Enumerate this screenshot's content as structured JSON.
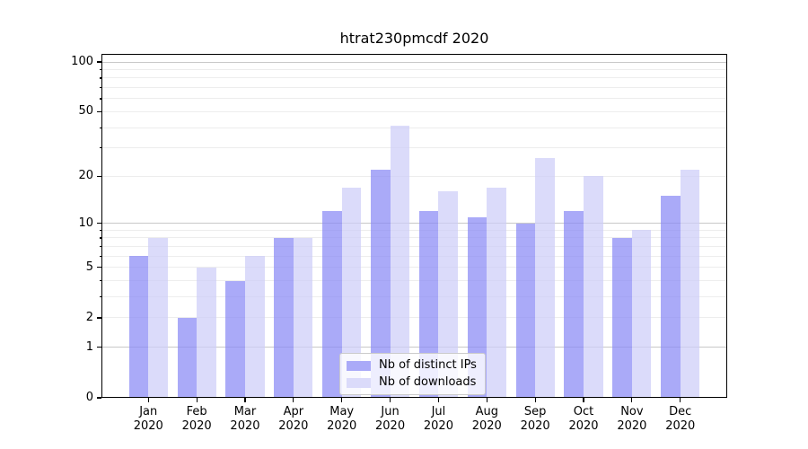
{
  "figure": {
    "background": "#ffffff"
  },
  "chart_data": {
    "type": "bar",
    "title": "htrat230pmcdf 2020",
    "categories": [
      "Jan",
      "Feb",
      "Mar",
      "Apr",
      "May",
      "Jun",
      "Jul",
      "Aug",
      "Sep",
      "Oct",
      "Nov",
      "Dec"
    ],
    "x_tick_line2": "2020",
    "series": [
      {
        "name": "Nb of distinct IPs",
        "values": [
          6,
          2,
          4,
          8,
          12,
          22,
          12,
          11,
          10,
          12,
          8,
          15
        ],
        "fill": "rgba(137,137,245,0.72)",
        "legend_color": "#aaaaf8"
      },
      {
        "name": "Nb of downloads",
        "values": [
          8,
          5,
          6,
          8,
          17,
          41,
          16,
          17,
          26,
          20,
          9,
          22
        ],
        "fill": "rgba(205,205,248,0.72)",
        "legend_color": "#dbdbfa"
      }
    ],
    "yscale": "log1p",
    "ylim": [
      0,
      111
    ],
    "ytick_values": [
      0,
      1,
      2,
      5,
      10,
      20,
      50,
      100
    ],
    "ytick_labels": [
      "0",
      "1",
      "2",
      "5",
      "10",
      "20",
      "50",
      "100"
    ],
    "gridlines": {
      "major_values": [
        1,
        10,
        100
      ],
      "minor_values": [
        2,
        3,
        4,
        5,
        6,
        7,
        8,
        9,
        20,
        30,
        40,
        50,
        60,
        70,
        80,
        90
      ],
      "major_color": "#c9c9c9",
      "minor_color": "#ededed"
    },
    "legend_position": "lower center",
    "axis_color": "#000000",
    "text_color": "#000000"
  }
}
